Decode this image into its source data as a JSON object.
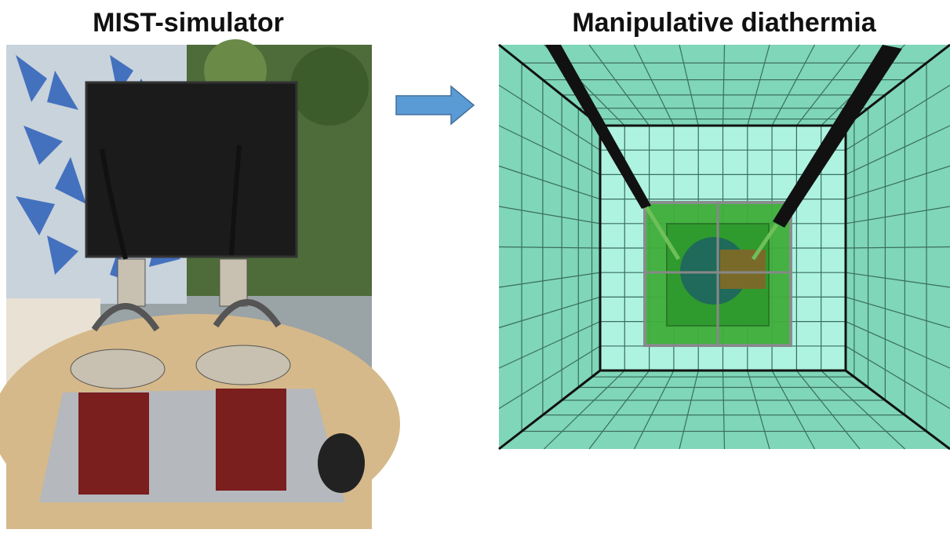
{
  "left_panel": {
    "title": "MIST-simulator"
  },
  "right_panel": {
    "title": "Manipulative diathermia"
  }
}
